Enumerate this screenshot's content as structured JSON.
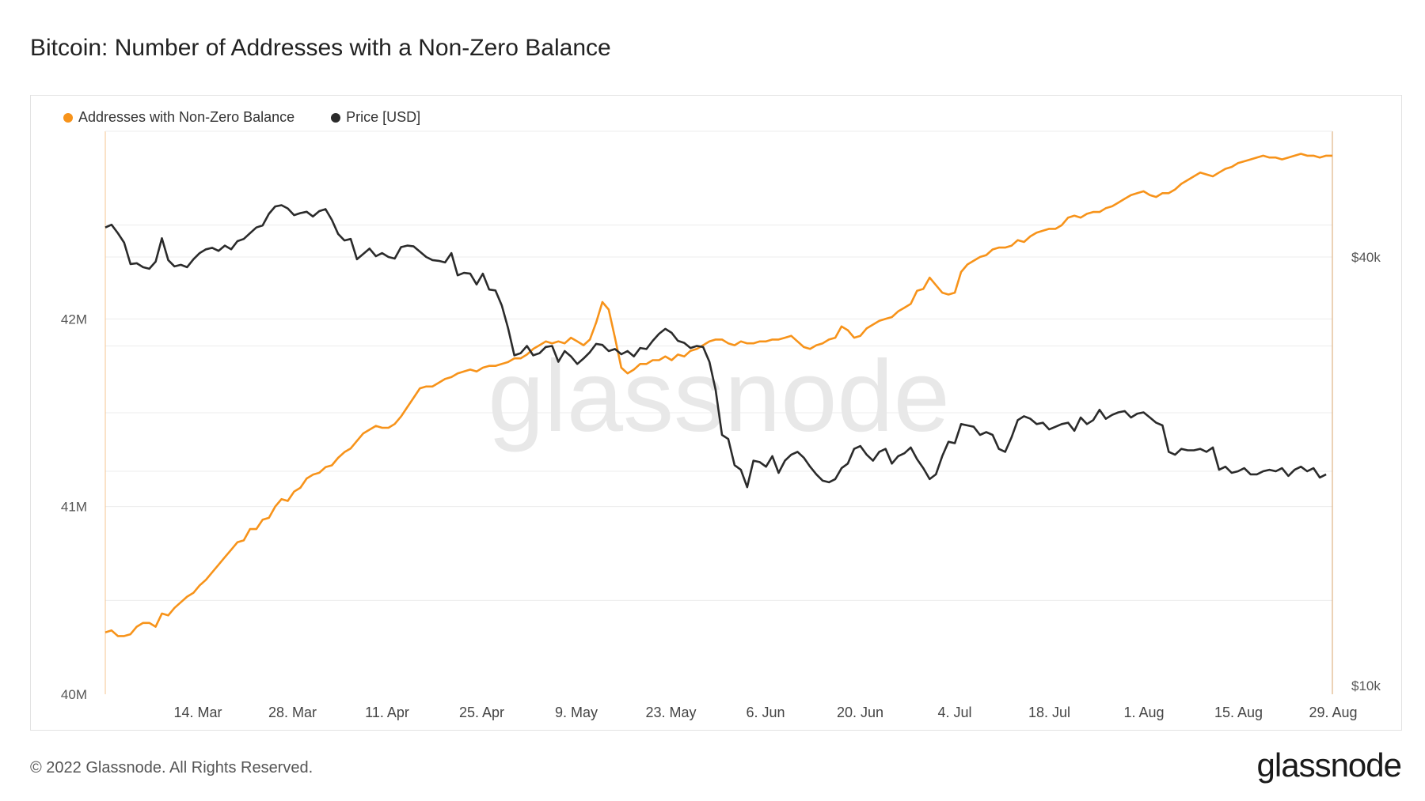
{
  "title": "Bitcoin: Number of Addresses with a Non-Zero Balance",
  "footer": "© 2022 Glassnode. All Rights Reserved.",
  "brand": "glassnode",
  "watermark": "glassnode",
  "colors": {
    "addresses": "#f7931a",
    "price": "#2b2b2b",
    "grid": "#ececec",
    "axis_text": "#555555",
    "watermark": "#e8e8e8"
  },
  "chart_data": {
    "type": "line",
    "title": "Bitcoin: Number of Addresses with a Non-Zero Balance",
    "x_range": [
      "2022-03-01",
      "2022-08-31"
    ],
    "xticks": [
      "14. Mar",
      "28. Mar",
      "11. Apr",
      "25. Apr",
      "9. May",
      "23. May",
      "6. Jun",
      "20. Jun",
      "4. Jul",
      "18. Jul",
      "1. Aug",
      "15. Aug",
      "29. Aug"
    ],
    "y_left": {
      "ticks": [
        "40M",
        "41M",
        "42M"
      ],
      "ticks_values": [
        40000000,
        41000000,
        42000000
      ],
      "range": [
        40000000,
        43000000
      ]
    },
    "y_right": {
      "ticks": [
        "$10k",
        "$40k"
      ],
      "ticks_values": [
        10000,
        40000
      ],
      "scale": "log"
    },
    "grid": true,
    "legend_position": "top-left",
    "series": [
      {
        "name": "Addresses with Non-Zero Balance",
        "axis": "left",
        "values": [
          40330000,
          40340000,
          40310000,
          40310000,
          40320000,
          40360000,
          40380000,
          40380000,
          40360000,
          40430000,
          40420000,
          40460000,
          40490000,
          40520000,
          40540000,
          40580000,
          40610000,
          40650000,
          40690000,
          40730000,
          40770000,
          40810000,
          40820000,
          40880000,
          40880000,
          40930000,
          40940000,
          41000000,
          41040000,
          41030000,
          41080000,
          41100000,
          41150000,
          41170000,
          41180000,
          41210000,
          41220000,
          41260000,
          41290000,
          41310000,
          41350000,
          41390000,
          41410000,
          41430000,
          41420000,
          41420000,
          41440000,
          41480000,
          41530000,
          41580000,
          41630000,
          41640000,
          41640000,
          41660000,
          41680000,
          41690000,
          41710000,
          41720000,
          41730000,
          41720000,
          41740000,
          41750000,
          41750000,
          41760000,
          41770000,
          41790000,
          41790000,
          41810000,
          41840000,
          41860000,
          41880000,
          41870000,
          41880000,
          41870000,
          41900000,
          41880000,
          41860000,
          41890000,
          41980000,
          42090000,
          42050000,
          41900000,
          41740000,
          41710000,
          41730000,
          41760000,
          41760000,
          41780000,
          41780000,
          41800000,
          41780000,
          41810000,
          41800000,
          41830000,
          41840000,
          41860000,
          41880000,
          41890000,
          41890000,
          41870000,
          41860000,
          41880000,
          41870000,
          41870000,
          41880000,
          41880000,
          41890000,
          41890000,
          41900000,
          41910000,
          41880000,
          41850000,
          41840000,
          41860000,
          41870000,
          41890000,
          41900000,
          41960000,
          41940000,
          41900000,
          41910000,
          41950000,
          41970000,
          41990000,
          42000000,
          42010000,
          42040000,
          42060000,
          42080000,
          42150000,
          42160000,
          42220000,
          42180000,
          42140000,
          42130000,
          42140000,
          42250000,
          42290000,
          42310000,
          42330000,
          42340000,
          42370000,
          42380000,
          42380000,
          42390000,
          42420000,
          42410000,
          42440000,
          42460000,
          42470000,
          42480000,
          42480000,
          42500000,
          42540000,
          42550000,
          42540000,
          42560000,
          42570000,
          42570000,
          42590000,
          42600000,
          42620000,
          42640000,
          42660000,
          42670000,
          42680000,
          42660000,
          42650000,
          42670000,
          42670000,
          42690000,
          42720000,
          42740000,
          42760000,
          42780000,
          42770000,
          42760000,
          42780000,
          42800000,
          42810000,
          42830000,
          42840000,
          42850000,
          42860000,
          42870000,
          42860000,
          42860000,
          42850000,
          42860000,
          42870000,
          42880000,
          42870000,
          42870000,
          42860000,
          42870000,
          42870000
        ]
      },
      {
        "name": "Price [USD]",
        "axis": "right",
        "values": [
          44000,
          44400,
          43200,
          41900,
          39100,
          39200,
          38700,
          38500,
          39400,
          42500,
          39600,
          38800,
          39000,
          38700,
          39700,
          40500,
          41000,
          41200,
          40800,
          41500,
          41000,
          42100,
          42400,
          43200,
          44000,
          44300,
          46000,
          47100,
          47300,
          46800,
          45800,
          46100,
          46300,
          45600,
          46400,
          46700,
          45100,
          43100,
          42200,
          42400,
          39700,
          40400,
          41100,
          40100,
          40500,
          40000,
          39800,
          41300,
          41500,
          41400,
          40700,
          40000,
          39600,
          39500,
          39300,
          40500,
          37700,
          38000,
          37900,
          36600,
          37900,
          36000,
          35900,
          34200,
          31800,
          29100,
          29300,
          30000,
          29100,
          29300,
          29900,
          30000,
          28500,
          29500,
          29000,
          28300,
          28800,
          29400,
          30200,
          30100,
          29500,
          29700,
          29200,
          29500,
          29000,
          29800,
          29700,
          30500,
          31200,
          31700,
          31300,
          30500,
          30300,
          29800,
          30000,
          29900,
          28500,
          26000,
          22500,
          22200,
          20400,
          20100,
          19000,
          20700,
          20600,
          20300,
          21000,
          19900,
          20700,
          21100,
          21300,
          20900,
          20300,
          19800,
          19400,
          19300,
          19500,
          20200,
          20500,
          21500,
          21700,
          21100,
          20700,
          21300,
          21500,
          20500,
          21000,
          21200,
          21600,
          20800,
          20200,
          19500,
          19800,
          21000,
          22000,
          21900,
          23300,
          23200,
          23100,
          22500,
          22700,
          22500,
          21500,
          21300,
          22300,
          23600,
          23900,
          23700,
          23300,
          23400,
          22900,
          23100,
          23300,
          23400,
          22800,
          23800,
          23300,
          23600,
          24400,
          23700,
          24000,
          24200,
          24300,
          23800,
          24100,
          24200,
          23800,
          23400,
          23200,
          21300,
          21100,
          21500,
          21400,
          21400,
          21500,
          21300,
          21600,
          20100,
          20300,
          19900,
          20000,
          20200,
          19800,
          19800,
          20000,
          20100,
          20000,
          20200,
          19700,
          20100,
          20300,
          20000,
          20200,
          19600,
          19800
        ]
      }
    ]
  }
}
